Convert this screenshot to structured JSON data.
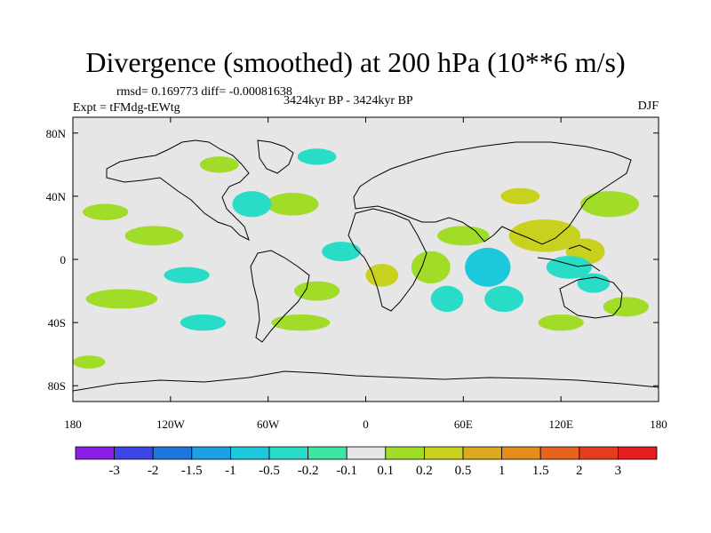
{
  "chart_data": {
    "type": "heatmap",
    "title": "Divergence (smoothed) at 200 hPa (10**6 m/s)",
    "stats": "rmsd= 0.169773 diff= -0.00081638",
    "period": "3424kyr BP - 3424kyr BP",
    "experiment": "Expt = tFMdg-tEWtg",
    "season": "DJF",
    "xlabel": "",
    "ylabel": "",
    "xlim": [
      -180,
      180
    ],
    "ylim": [
      -90,
      90
    ],
    "x_ticks": [
      {
        "value": -180,
        "label": "180"
      },
      {
        "value": -120,
        "label": "120W"
      },
      {
        "value": -60,
        "label": "60W"
      },
      {
        "value": 0,
        "label": "0"
      },
      {
        "value": 60,
        "label": "60E"
      },
      {
        "value": 120,
        "label": "120E"
      },
      {
        "value": 180,
        "label": "180"
      }
    ],
    "y_ticks": [
      {
        "value": 80,
        "label": "80N"
      },
      {
        "value": 40,
        "label": "40N"
      },
      {
        "value": 0,
        "label": "0"
      },
      {
        "value": -40,
        "label": "40S"
      },
      {
        "value": -80,
        "label": "80S"
      }
    ],
    "colorbar": {
      "levels": [
        "-3",
        "-2",
        "-1.5",
        "-1",
        "-0.5",
        "-0.2",
        "-0.1",
        "0.1",
        "0.2",
        "0.5",
        "1",
        "1.5",
        "2",
        "3"
      ],
      "colors": [
        "#8c1ee6",
        "#3c46e6",
        "#1e78dc",
        "#1ea0e6",
        "#1ec8dc",
        "#28dcc8",
        "#3ce6a0",
        "#e6e6e6",
        "#a0dc28",
        "#c8d21e",
        "#dcaa1e",
        "#e68c1e",
        "#e6641e",
        "#e63c1e",
        "#e61e1e"
      ]
    },
    "blobs": [
      {
        "lon": 110,
        "lat": 15,
        "rx": 22,
        "ry": 10,
        "value": 0.5
      },
      {
        "lon": 135,
        "lat": 5,
        "rx": 12,
        "ry": 8,
        "value": 0.5
      },
      {
        "lon": 150,
        "lat": 35,
        "rx": 18,
        "ry": 8,
        "value": 0.2
      },
      {
        "lon": 125,
        "lat": -5,
        "rx": 14,
        "ry": 7,
        "value": -0.2
      },
      {
        "lon": 140,
        "lat": -15,
        "rx": 10,
        "ry": 6,
        "value": -0.2
      },
      {
        "lon": 75,
        "lat": -5,
        "rx": 14,
        "ry": 12,
        "value": -0.5
      },
      {
        "lon": 85,
        "lat": -25,
        "rx": 12,
        "ry": 8,
        "value": -0.2
      },
      {
        "lon": 60,
        "lat": 15,
        "rx": 16,
        "ry": 6,
        "value": 0.2
      },
      {
        "lon": 40,
        "lat": -5,
        "rx": 12,
        "ry": 10,
        "value": 0.2
      },
      {
        "lon": 50,
        "lat": -25,
        "rx": 10,
        "ry": 8,
        "value": -0.2
      },
      {
        "lon": 10,
        "lat": -10,
        "rx": 10,
        "ry": 7,
        "value": 0.5
      },
      {
        "lon": -15,
        "lat": 5,
        "rx": 12,
        "ry": 6,
        "value": -0.2
      },
      {
        "lon": -45,
        "lat": 35,
        "rx": 16,
        "ry": 7,
        "value": 0.2
      },
      {
        "lon": -70,
        "lat": 35,
        "rx": 12,
        "ry": 8,
        "value": -0.2
      },
      {
        "lon": -130,
        "lat": 15,
        "rx": 18,
        "ry": 6,
        "value": 0.2
      },
      {
        "lon": -160,
        "lat": 30,
        "rx": 14,
        "ry": 5,
        "value": 0.2
      },
      {
        "lon": -150,
        "lat": -25,
        "rx": 22,
        "ry": 6,
        "value": 0.2
      },
      {
        "lon": -110,
        "lat": -10,
        "rx": 14,
        "ry": 5,
        "value": -0.2
      },
      {
        "lon": -30,
        "lat": -20,
        "rx": 14,
        "ry": 6,
        "value": 0.2
      },
      {
        "lon": -40,
        "lat": -40,
        "rx": 18,
        "ry": 5,
        "value": 0.2
      },
      {
        "lon": -100,
        "lat": -40,
        "rx": 14,
        "ry": 5,
        "value": -0.2
      },
      {
        "lon": 160,
        "lat": -30,
        "rx": 14,
        "ry": 6,
        "value": 0.2
      },
      {
        "lon": 120,
        "lat": -40,
        "rx": 14,
        "ry": 5,
        "value": 0.2
      },
      {
        "lon": -170,
        "lat": -65,
        "rx": 10,
        "ry": 4,
        "value": 0.2
      },
      {
        "lon": 95,
        "lat": 40,
        "rx": 12,
        "ry": 5,
        "value": 0.5
      },
      {
        "lon": -90,
        "lat": 60,
        "rx": 12,
        "ry": 5,
        "value": 0.2
      },
      {
        "lon": -30,
        "lat": 65,
        "rx": 12,
        "ry": 5,
        "value": -0.2
      }
    ]
  }
}
